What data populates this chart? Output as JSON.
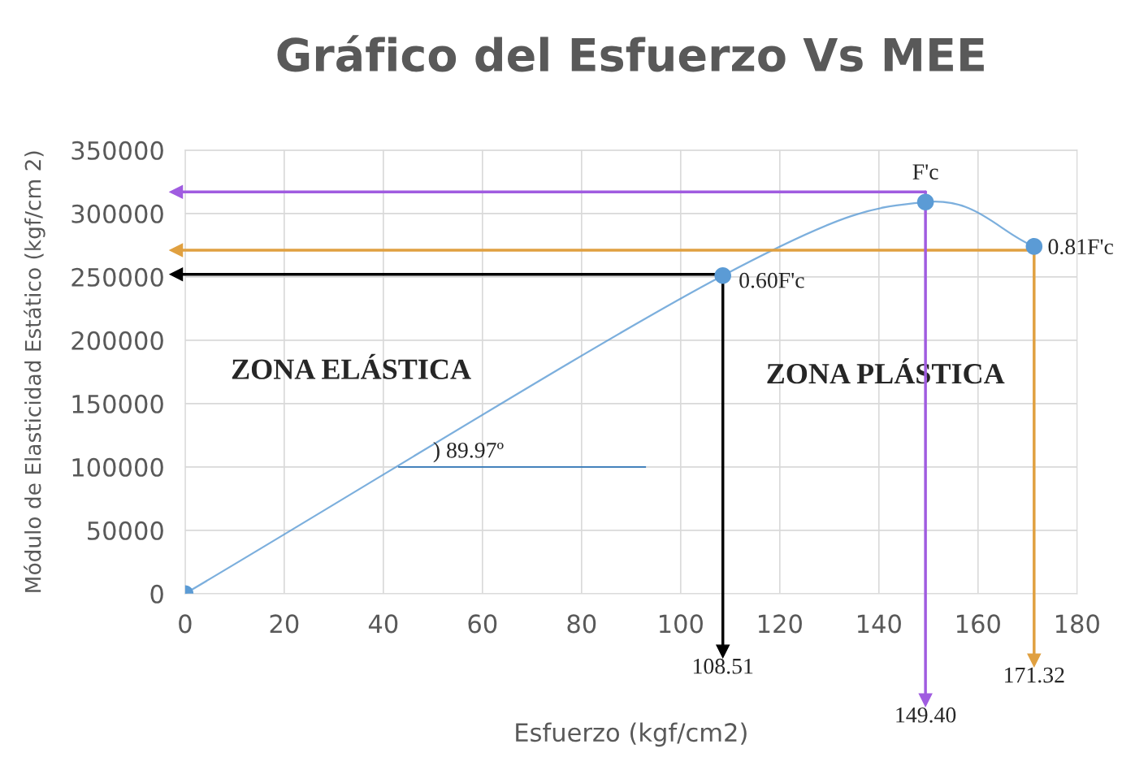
{
  "chart_data": {
    "type": "line",
    "title": "Gráfico del Esfuerzo Vs MEE",
    "xlabel": "Esfuerzo (kgf/cm2)",
    "ylabel": "Módulo de Elasticidad Estático (kgf/cm 2)",
    "series": [
      {
        "color": "#5b9bd5",
        "x": [
          0,
          108.51,
          149.4,
          171.32
        ],
        "values": [
          0,
          251000,
          309000,
          274000
        ],
        "marker": "circle"
      },
      {
        "color": "#2e75b6",
        "x": [
          43,
          93
        ],
        "values": [
          100000,
          100000
        ],
        "marker": "none"
      }
    ],
    "xlim": [
      0,
      180
    ],
    "xticks": [
      0,
      20,
      40,
      60,
      80,
      100,
      120,
      140,
      160,
      180
    ],
    "ylim": [
      0,
      350000
    ],
    "yticks": [
      0,
      50000,
      100000,
      150000,
      200000,
      250000,
      300000,
      350000
    ],
    "grid": true,
    "ref_lines": [
      {
        "axis": "y",
        "value": 317000,
        "color": "#a05ce0"
      },
      {
        "axis": "x",
        "value": 149.4,
        "label": "149.40",
        "color": "#a05ce0"
      },
      {
        "axis": "y",
        "value": 271000,
        "color": "#e0a040"
      },
      {
        "axis": "x",
        "value": 171.32,
        "label": "171.32",
        "color": "#e0a040"
      },
      {
        "axis": "y",
        "value": 252000,
        "color": "#000000"
      },
      {
        "axis": "x",
        "value": 108.51,
        "label": "108.51",
        "color": "#000000"
      }
    ],
    "annotations": [
      {
        "text": "F'c",
        "x": 149.4,
        "y": 309000
      },
      {
        "text": "0.60F'c",
        "x": 108.51,
        "y": 251000
      },
      {
        "text": "0.81F'c",
        "x": 171.32,
        "y": 274000
      },
      {
        "text": ") 89.97º",
        "x": 50,
        "y": 100000
      },
      "ZONA ELÁSTICA",
      "ZONA PLÁSTICA"
    ]
  }
}
